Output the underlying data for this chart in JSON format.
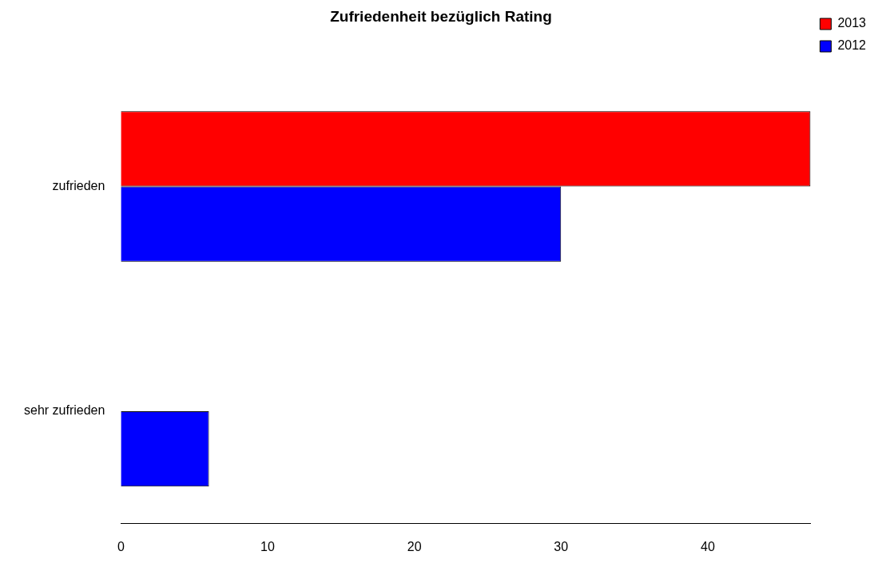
{
  "chart_data": {
    "type": "bar",
    "title": "Zufriedenheit bezüglich Rating",
    "orientation": "horizontal",
    "categories": [
      "zufrieden",
      "sehr zufrieden"
    ],
    "series": [
      {
        "name": "2013",
        "color": "#ff0000",
        "values": [
          47,
          0
        ]
      },
      {
        "name": "2012",
        "color": "#0000ff",
        "values": [
          30,
          6
        ]
      }
    ],
    "xlim": [
      0,
      47
    ],
    "xticks": [
      0,
      10,
      20,
      30,
      40
    ],
    "grid": false,
    "legend": "top right"
  }
}
